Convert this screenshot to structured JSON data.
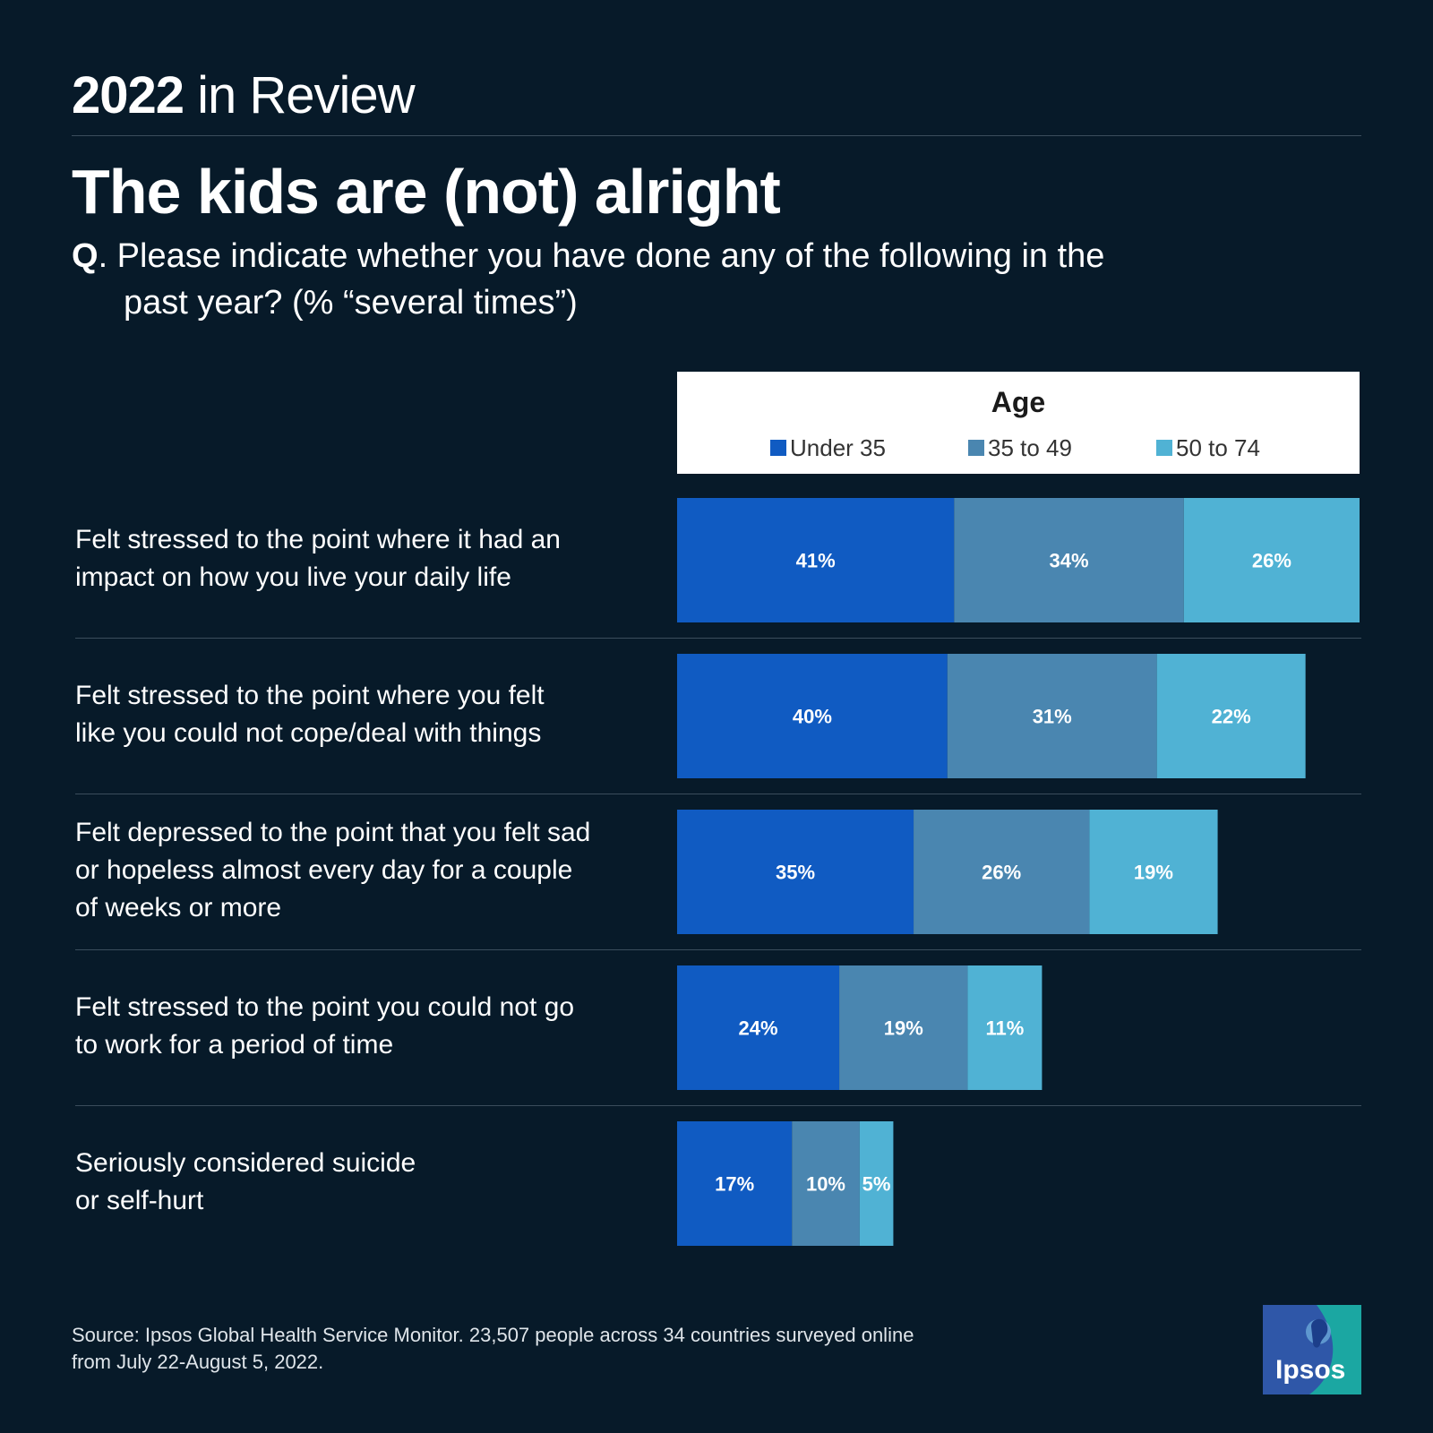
{
  "header": {
    "year": "2022",
    "rest": " in Review"
  },
  "title": "The kids are (not) alright",
  "question": {
    "q": "Q",
    "line1": ". Please indicate whether you have done any of the following in the",
    "line2": "past year? (% “several times”)"
  },
  "legend": {
    "title": "Age",
    "items": [
      "Under 35",
      "35 to 49",
      "50 to 74"
    ]
  },
  "colors": {
    "background": "#071a29",
    "under35": "#105bc2",
    "35to49": "#4a86b0",
    "50to74": "#50b2d4"
  },
  "source": {
    "line1": "Source: Ipsos Global Health Service Monitor. 23,507 people across 34 countries surveyed online",
    "line2": "from July 22-August 5, 2022."
  },
  "logo": {
    "text": "Ipsos"
  },
  "chart_data": {
    "type": "bar",
    "orientation": "horizontal",
    "stacked": true,
    "categories": [
      "Felt stressed to the point where it had an impact on how you live your daily life",
      "Felt stressed to the point where you felt like you could not cope/deal with things",
      "Felt depressed to the point that you felt sad or hopeless almost every day for a couple of weeks or more",
      "Felt stressed to the point you could not go to work for a period of time",
      "Seriously considered suicide or self-hurt"
    ],
    "category_lines": [
      [
        "Felt stressed to the point where it had an",
        "impact on how you live your daily life"
      ],
      [
        "Felt stressed to the point where you felt",
        "like you could not cope/deal with things"
      ],
      [
        "Felt depressed to the point that you felt sad",
        "or hopeless almost every day for a couple",
        "of weeks or more"
      ],
      [
        "Felt stressed to the point you could not go",
        "to work for a period of time"
      ],
      [
        "Seriously considered suicide",
        "or self-hurt"
      ]
    ],
    "series": [
      {
        "name": "Under 35",
        "values": [
          41,
          40,
          35,
          24,
          17
        ],
        "labels": [
          "41%",
          "40%",
          "35%",
          "24%",
          "17%"
        ]
      },
      {
        "name": "35 to 49",
        "values": [
          34,
          31,
          26,
          19,
          10
        ],
        "labels": [
          "34%",
          "31%",
          "26%",
          "19%",
          "10%"
        ]
      },
      {
        "name": "50 to 74",
        "values": [
          26,
          22,
          19,
          11,
          5
        ],
        "labels": [
          "26%",
          "22%",
          "19%",
          "11%",
          "5%"
        ]
      }
    ],
    "legend_title": "Age",
    "legend_position": "top",
    "grid": false
  }
}
